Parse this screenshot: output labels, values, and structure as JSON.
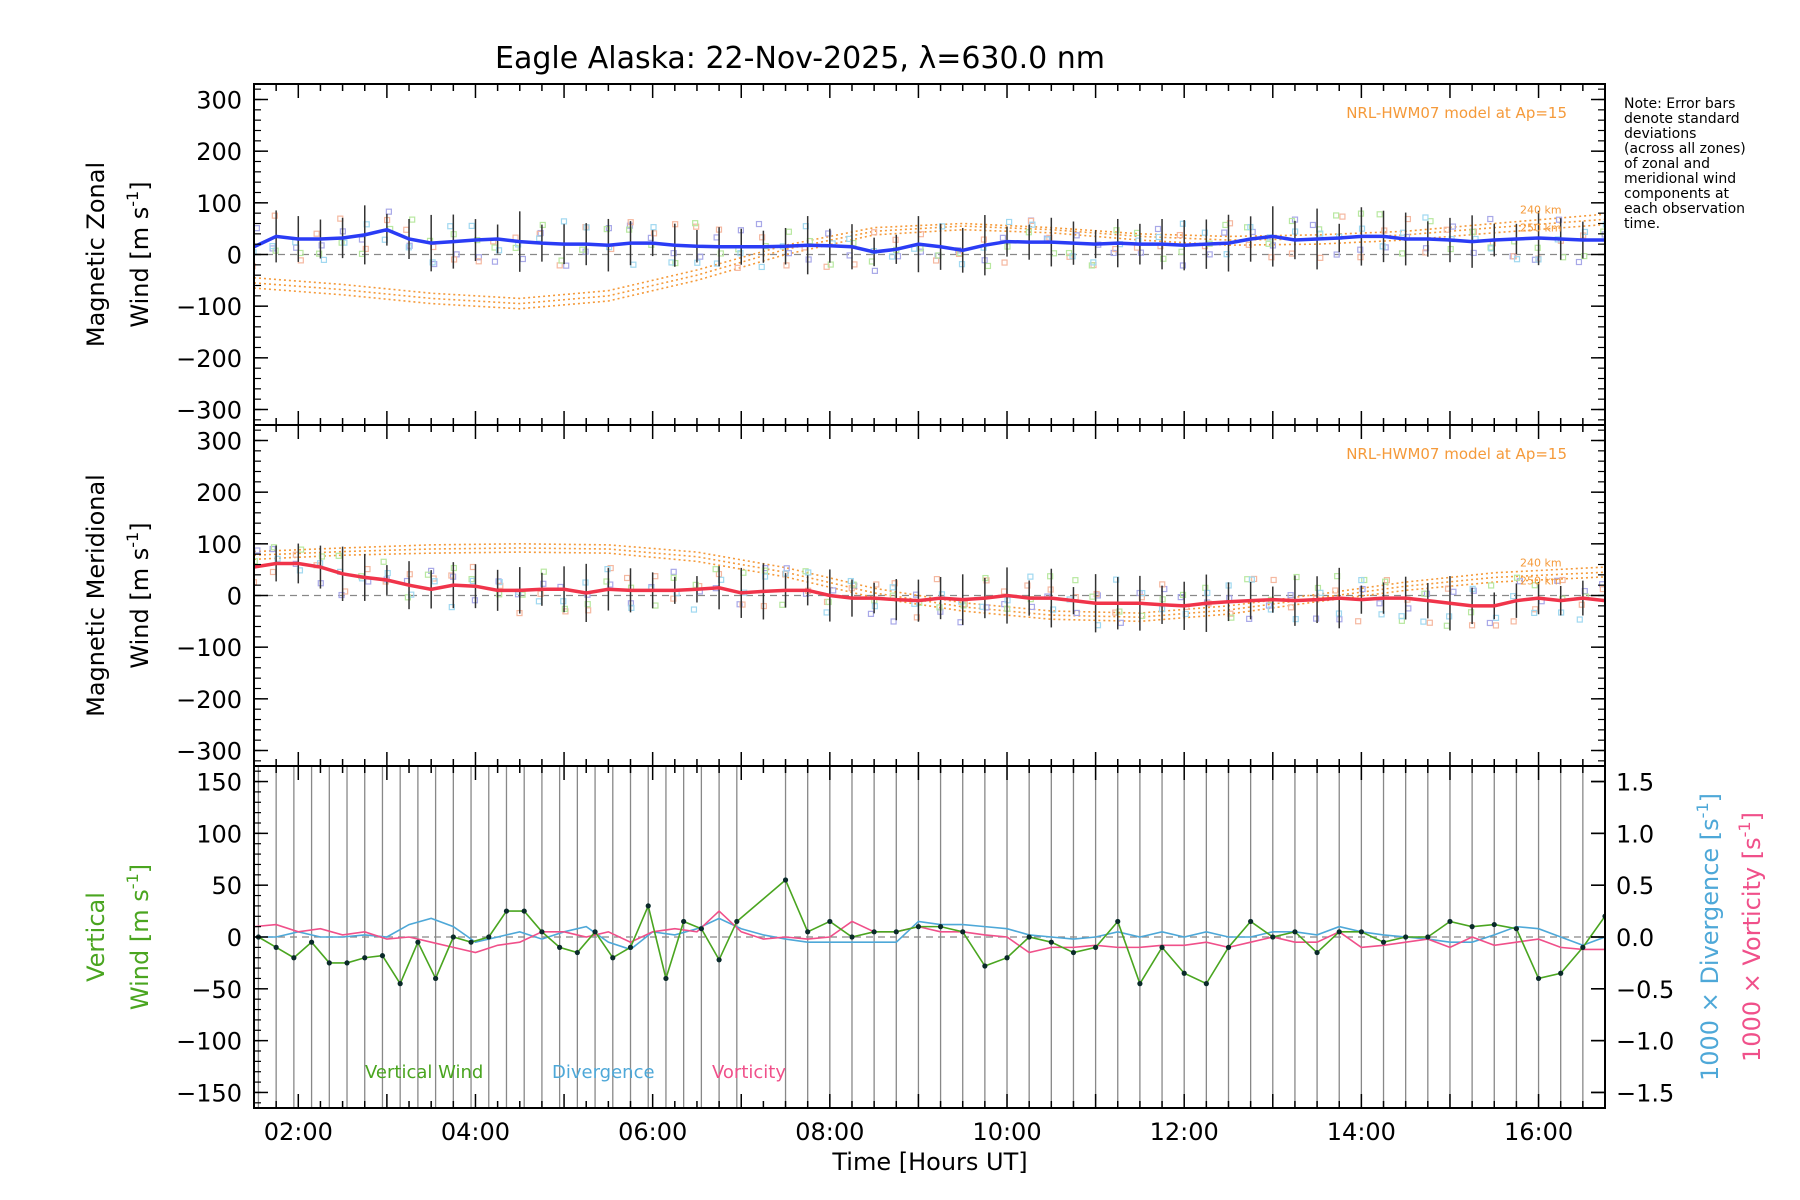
{
  "title": "Eagle Alaska: 22-Nov-2025, λ=630.0 nm",
  "note": [
    "Note: Error bars",
    "denote standard",
    "deviations",
    "(across all zones)",
    "of zonal and",
    "meridional wind",
    "components at",
    "each observation",
    "time."
  ],
  "colors": {
    "zonal": "#2a3cf5",
    "meridional": "#f0344a",
    "model": "#f59a3a",
    "vertical": "#4aa520",
    "divergence": "#4ea8d8",
    "vorticity": "#f0508a",
    "grid": "#888888"
  },
  "chart_data": [
    {
      "type": "line",
      "panel": "zonal",
      "ylabel_line1": "Magnetic Zonal",
      "ylabel_line2": "Wind [m s",
      "ylabel_sup": "-1",
      "ylabel_close": "]",
      "ylim": [
        -330,
        330
      ],
      "yticks": [
        300,
        200,
        100,
        0,
        -100,
        -200,
        -300
      ],
      "ytick_labels": [
        "300",
        "200",
        "100",
        "0",
        "−100",
        "−200",
        "−300"
      ],
      "xlim": [
        1.5,
        16.75
      ],
      "model_label": "NRL-HWM07 model at Ap=15",
      "model_heights": [
        "240 km",
        "250 km"
      ],
      "x": [
        1.5,
        1.75,
        2.0,
        2.25,
        2.5,
        2.75,
        3.0,
        3.25,
        3.5,
        3.75,
        4.0,
        4.25,
        4.5,
        4.75,
        5.0,
        5.25,
        5.5,
        5.75,
        6.0,
        6.25,
        6.5,
        6.75,
        7.0,
        7.25,
        7.5,
        7.75,
        8.0,
        8.25,
        8.5,
        8.75,
        9.0,
        9.25,
        9.5,
        9.75,
        10.0,
        10.25,
        10.5,
        10.75,
        11.0,
        11.25,
        11.5,
        11.75,
        12.0,
        12.25,
        12.5,
        12.75,
        13.0,
        13.25,
        13.5,
        13.75,
        14.0,
        14.25,
        14.5,
        14.75,
        15.0,
        15.25,
        15.5,
        15.75,
        16.0,
        16.25,
        16.5,
        16.75
      ],
      "series": [
        {
          "name": "zonal",
          "values": [
            15,
            35,
            30,
            30,
            32,
            38,
            48,
            30,
            22,
            25,
            28,
            30,
            25,
            22,
            20,
            20,
            18,
            22,
            22,
            18,
            16,
            15,
            15,
            15,
            16,
            18,
            17,
            15,
            5,
            10,
            20,
            15,
            8,
            18,
            25,
            24,
            24,
            22,
            20,
            22,
            20,
            20,
            18,
            20,
            22,
            30,
            35,
            28,
            30,
            32,
            35,
            35,
            30,
            30,
            28,
            25,
            28,
            30,
            32,
            30,
            28,
            28
          ]
        }
      ],
      "model": [
        {
          "x": [
            1.5,
            2.5,
            3.5,
            4.5,
            5.5,
            6.5,
            7.5,
            8.5,
            9.5,
            10.5,
            11.5,
            12.5,
            13.5,
            14.5,
            15.5,
            16.75
          ],
          "values": [
            -55,
            -68,
            -85,
            -95,
            -80,
            -40,
            10,
            45,
            55,
            48,
            35,
            28,
            30,
            38,
            52,
            68
          ]
        },
        {
          "x": [
            1.5,
            2.5,
            3.5,
            4.5,
            5.5,
            6.5,
            7.5,
            8.5,
            9.5,
            10.5,
            11.5,
            12.5,
            13.5,
            14.5,
            15.5,
            16.75
          ],
          "values": [
            -65,
            -78,
            -95,
            -105,
            -90,
            -50,
            0,
            38,
            48,
            42,
            28,
            18,
            20,
            28,
            42,
            58
          ]
        },
        {
          "x": [
            1.5,
            2.5,
            3.5,
            4.5,
            5.5,
            6.5,
            7.5,
            8.5,
            9.5,
            10.5,
            11.5,
            12.5,
            13.5,
            14.5,
            15.5,
            16.75
          ],
          "values": [
            -45,
            -58,
            -75,
            -85,
            -70,
            -30,
            18,
            52,
            60,
            52,
            40,
            35,
            38,
            45,
            60,
            78
          ]
        }
      ]
    },
    {
      "type": "line",
      "panel": "meridional",
      "ylabel_line1": "Magnetic Meridional",
      "ylabel_line2": "Wind [m s",
      "ylabel_sup": "-1",
      "ylabel_close": "]",
      "ylim": [
        -330,
        330
      ],
      "yticks": [
        300,
        200,
        100,
        0,
        -100,
        -200,
        -300
      ],
      "ytick_labels": [
        "300",
        "200",
        "100",
        "0",
        "−100",
        "−200",
        "−300"
      ],
      "xlim": [
        1.5,
        16.75
      ],
      "model_label": "NRL-HWM07 model at Ap=15",
      "model_heights": [
        "240 km",
        "250 km"
      ],
      "x": [
        1.5,
        1.75,
        2.0,
        2.25,
        2.5,
        2.75,
        3.0,
        3.25,
        3.5,
        3.75,
        4.0,
        4.25,
        4.5,
        4.75,
        5.0,
        5.25,
        5.5,
        5.75,
        6.0,
        6.25,
        6.5,
        6.75,
        7.0,
        7.25,
        7.5,
        7.75,
        8.0,
        8.25,
        8.5,
        8.75,
        9.0,
        9.25,
        9.5,
        9.75,
        10.0,
        10.25,
        10.5,
        10.75,
        11.0,
        11.25,
        11.5,
        11.75,
        12.0,
        12.25,
        12.5,
        12.75,
        13.0,
        13.25,
        13.5,
        13.75,
        14.0,
        14.25,
        14.5,
        14.75,
        15.0,
        15.25,
        15.5,
        15.75,
        16.0,
        16.25,
        16.5,
        16.75
      ],
      "series": [
        {
          "name": "meridional",
          "values": [
            55,
            62,
            62,
            55,
            42,
            35,
            30,
            20,
            12,
            20,
            18,
            10,
            10,
            12,
            12,
            5,
            12,
            10,
            10,
            10,
            12,
            15,
            5,
            8,
            10,
            10,
            0,
            -5,
            -5,
            -8,
            -10,
            -5,
            -8,
            -5,
            0,
            -5,
            -5,
            -10,
            -15,
            -15,
            -15,
            -18,
            -20,
            -15,
            -12,
            -10,
            -8,
            -10,
            -8,
            -5,
            -8,
            -5,
            -5,
            -10,
            -15,
            -20,
            -20,
            -10,
            -5,
            -10,
            -5,
            -10
          ]
        }
      ],
      "model": [
        {
          "x": [
            1.5,
            2.5,
            3.5,
            4.5,
            5.5,
            6.5,
            7.5,
            8.5,
            9.5,
            10.5,
            11.5,
            12.5,
            13.5,
            14.5,
            15.5,
            16.75
          ],
          "values": [
            78,
            85,
            90,
            92,
            90,
            75,
            45,
            5,
            -22,
            -38,
            -42,
            -28,
            -5,
            18,
            35,
            45
          ]
        },
        {
          "x": [
            1.5,
            2.5,
            3.5,
            4.5,
            5.5,
            6.5,
            7.5,
            8.5,
            9.5,
            10.5,
            11.5,
            12.5,
            13.5,
            14.5,
            15.5,
            16.75
          ],
          "values": [
            70,
            78,
            82,
            84,
            82,
            66,
            36,
            -4,
            -30,
            -46,
            -50,
            -36,
            -12,
            10,
            26,
            36
          ]
        },
        {
          "x": [
            1.5,
            2.5,
            3.5,
            4.5,
            5.5,
            6.5,
            7.5,
            8.5,
            9.5,
            10.5,
            11.5,
            12.5,
            13.5,
            14.5,
            15.5,
            16.75
          ],
          "values": [
            85,
            92,
            98,
            100,
            98,
            84,
            54,
            14,
            -14,
            -30,
            -34,
            -20,
            2,
            26,
            44,
            55
          ]
        }
      ]
    },
    {
      "type": "line",
      "panel": "vertical",
      "ylabel_line1": "Vertical",
      "ylabel_line2": "Wind [m s",
      "ylabel_sup": "-1",
      "ylabel_close": "]",
      "ylim": [
        -165,
        165
      ],
      "yticks": [
        150,
        100,
        50,
        0,
        -50,
        -100,
        -150
      ],
      "ytick_labels": [
        "150",
        "100",
        "50",
        "0",
        "−50",
        "−100",
        "−150"
      ],
      "y2lim": [
        -1.65,
        1.65
      ],
      "y2ticks": [
        1.5,
        1.0,
        0.5,
        0.0,
        -0.5,
        -1.0,
        -1.5
      ],
      "y2tick_labels": [
        "1.5",
        "1.0",
        "0.5",
        "0.0",
        "−0.5",
        "−1.0",
        "−1.5"
      ],
      "y2label_div": "1000 × Divergence [s",
      "y2label_vort": "1000 × Vorticity [s",
      "y2label_sup": "-1",
      "y2label_close": "]",
      "xlim": [
        1.5,
        16.75
      ],
      "xlabel": "Time [Hours UT]",
      "xticks": [
        2,
        4,
        6,
        8,
        10,
        12,
        14,
        16
      ],
      "xtick_labels": [
        "02:00",
        "04:00",
        "06:00",
        "08:00",
        "10:00",
        "12:00",
        "14:00",
        "16:00"
      ],
      "legend": [
        "Vertical Wind",
        "Divergence",
        "Vorticity"
      ],
      "series": [
        {
          "name": "Vertical Wind",
          "x": [
            1.55,
            1.75,
            1.95,
            2.15,
            2.35,
            2.55,
            2.75,
            2.95,
            3.15,
            3.35,
            3.55,
            3.75,
            3.95,
            4.15,
            4.35,
            4.55,
            4.75,
            4.95,
            5.15,
            5.35,
            5.55,
            5.75,
            5.95,
            6.15,
            6.35,
            6.55,
            6.75,
            6.95,
            7.5,
            7.75,
            8.0,
            8.25,
            8.5,
            8.75,
            9.0,
            9.25,
            9.5,
            9.75,
            10.0,
            10.25,
            10.5,
            10.75,
            11.0,
            11.25,
            11.5,
            11.75,
            12.0,
            12.25,
            12.5,
            12.75,
            13.0,
            13.25,
            13.5,
            13.75,
            14.0,
            14.25,
            14.5,
            14.75,
            15.0,
            15.25,
            15.5,
            15.75,
            16.0,
            16.25,
            16.5,
            16.75
          ],
          "values": [
            0,
            -10,
            -20,
            -5,
            -25,
            -25,
            -20,
            -18,
            -45,
            -5,
            -40,
            0,
            -5,
            0,
            25,
            25,
            5,
            -10,
            -15,
            5,
            -20,
            -10,
            30,
            -40,
            15,
            8,
            -22,
            15,
            55,
            5,
            15,
            0,
            5,
            5,
            10,
            10,
            5,
            -28,
            -20,
            0,
            -5,
            -15,
            -10,
            15,
            -45,
            -10,
            -35,
            -45,
            -10,
            15,
            0,
            5,
            -15,
            5,
            5,
            -5,
            0,
            0,
            15,
            10,
            12,
            8,
            -40,
            -35,
            -10,
            20
          ]
        },
        {
          "name": "Divergence",
          "axis": "y2",
          "x": [
            1.5,
            1.75,
            2.0,
            2.25,
            2.5,
            2.75,
            3.0,
            3.25,
            3.5,
            3.75,
            4.0,
            4.25,
            4.5,
            4.75,
            5.0,
            5.25,
            5.5,
            5.75,
            6.0,
            6.25,
            6.5,
            6.75,
            7.0,
            7.25,
            7.5,
            7.75,
            8.0,
            8.25,
            8.5,
            8.75,
            9.0,
            9.25,
            9.5,
            9.75,
            10.0,
            10.25,
            10.5,
            10.75,
            11.0,
            11.25,
            11.5,
            11.75,
            12.0,
            12.25,
            12.5,
            12.75,
            13.0,
            13.25,
            13.5,
            13.75,
            14.0,
            14.25,
            14.5,
            14.75,
            15.0,
            15.25,
            15.5,
            15.75,
            16.0,
            16.25,
            16.5,
            16.75
          ],
          "values": [
            0.0,
            0.0,
            0.05,
            0.0,
            0.0,
            0.02,
            0.0,
            0.12,
            0.18,
            0.1,
            -0.05,
            0.0,
            0.05,
            -0.02,
            0.05,
            0.1,
            -0.05,
            -0.12,
            0.05,
            0.02,
            0.08,
            0.18,
            0.08,
            0.02,
            -0.02,
            -0.05,
            -0.05,
            -0.05,
            -0.05,
            -0.05,
            0.15,
            0.12,
            0.12,
            0.1,
            0.08,
            0.02,
            0.0,
            -0.02,
            0.0,
            0.05,
            0.0,
            0.05,
            0.0,
            0.05,
            0.0,
            0.0,
            0.05,
            0.05,
            0.02,
            0.1,
            0.05,
            0.02,
            0.0,
            -0.02,
            -0.05,
            -0.05,
            0.02,
            0.1,
            0.08,
            0.0,
            -0.08,
            0.0
          ]
        },
        {
          "name": "Vorticity",
          "axis": "y2",
          "x": [
            1.5,
            1.75,
            2.0,
            2.25,
            2.5,
            2.75,
            3.0,
            3.25,
            3.5,
            3.75,
            4.0,
            4.25,
            4.5,
            4.75,
            5.0,
            5.25,
            5.5,
            5.75,
            6.0,
            6.25,
            6.5,
            6.75,
            7.0,
            7.25,
            7.5,
            7.75,
            8.0,
            8.25,
            8.5,
            8.75,
            9.0,
            9.25,
            9.5,
            9.75,
            10.0,
            10.25,
            10.5,
            10.75,
            11.0,
            11.25,
            11.5,
            11.75,
            12.0,
            12.25,
            12.5,
            12.75,
            13.0,
            13.25,
            13.5,
            13.75,
            14.0,
            14.25,
            14.5,
            14.75,
            15.0,
            15.25,
            15.5,
            15.75,
            16.0,
            16.25,
            16.5,
            16.75
          ],
          "values": [
            0.1,
            0.12,
            0.05,
            0.08,
            0.02,
            0.05,
            -0.02,
            0.0,
            -0.05,
            -0.1,
            -0.15,
            -0.08,
            -0.05,
            0.05,
            0.05,
            0.0,
            0.05,
            -0.05,
            0.05,
            0.08,
            0.05,
            0.25,
            0.05,
            -0.02,
            0.0,
            -0.02,
            0.0,
            0.15,
            0.05,
            0.05,
            0.1,
            0.05,
            0.05,
            0.02,
            0.0,
            -0.15,
            -0.1,
            -0.1,
            -0.08,
            -0.1,
            -0.1,
            -0.08,
            -0.08,
            -0.05,
            -0.1,
            -0.05,
            0.0,
            -0.05,
            -0.05,
            0.05,
            -0.1,
            -0.08,
            -0.05,
            -0.02,
            -0.1,
            0.0,
            -0.08,
            -0.05,
            -0.02,
            -0.1,
            -0.12,
            -0.12
          ]
        }
      ]
    }
  ]
}
